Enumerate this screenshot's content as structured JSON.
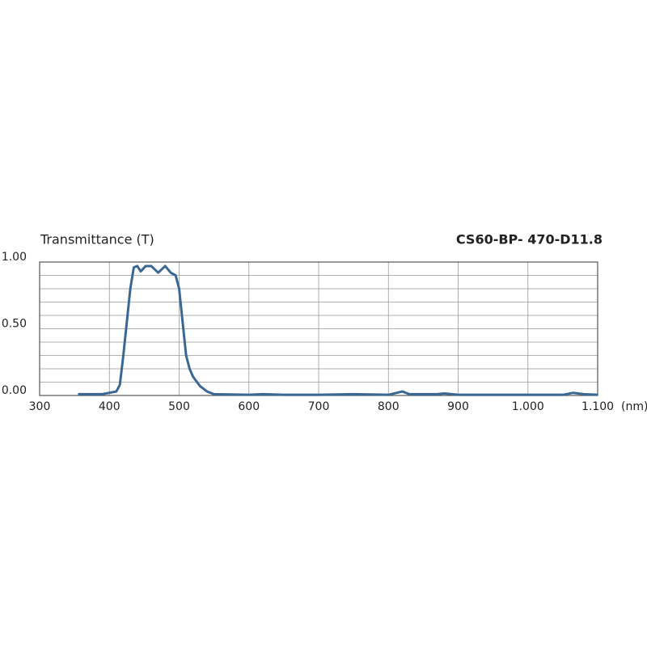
{
  "chart_data": {
    "type": "line",
    "title": "Transmittance (T)",
    "subtitle": "CS60-BP- 470-D11.8",
    "xlabel": "(nm)",
    "xlim": [
      300,
      1100
    ],
    "xticks": [
      300,
      400,
      500,
      600,
      700,
      800,
      900,
      {
        "value": 1000,
        "label": "1.000"
      },
      {
        "value": 1100,
        "label": "1.100"
      }
    ],
    "ylim": [
      0,
      1
    ],
    "yticks": [
      {
        "value": 0,
        "label": "0.00"
      },
      {
        "value": 0.5,
        "label": "0.50"
      },
      {
        "value": 1,
        "label": "1.00"
      }
    ],
    "yminor_ticks": [
      0.1,
      0.2,
      0.3,
      0.4,
      0.6,
      0.7,
      0.8,
      0.9
    ],
    "grid": true,
    "series": [
      {
        "color": "#3a6894",
        "x": [
          355,
          390,
          400,
          410,
          415,
          420,
          425,
          430,
          435,
          440,
          445,
          452,
          460,
          470,
          480,
          488,
          495,
          500,
          505,
          510,
          515,
          520,
          530,
          540,
          550,
          600,
          620,
          650,
          700,
          750,
          800,
          820,
          830,
          870,
          880,
          900,
          1000,
          1050,
          1065,
          1080,
          1100
        ],
        "values": [
          0.01,
          0.01,
          0.02,
          0.03,
          0.08,
          0.3,
          0.55,
          0.8,
          0.96,
          0.97,
          0.93,
          0.97,
          0.97,
          0.92,
          0.97,
          0.92,
          0.9,
          0.8,
          0.55,
          0.3,
          0.2,
          0.14,
          0.07,
          0.03,
          0.01,
          0.005,
          0.01,
          0.005,
          0.005,
          0.01,
          0.005,
          0.03,
          0.01,
          0.01,
          0.015,
          0.005,
          0.005,
          0.005,
          0.02,
          0.01,
          0.005
        ]
      }
    ]
  }
}
